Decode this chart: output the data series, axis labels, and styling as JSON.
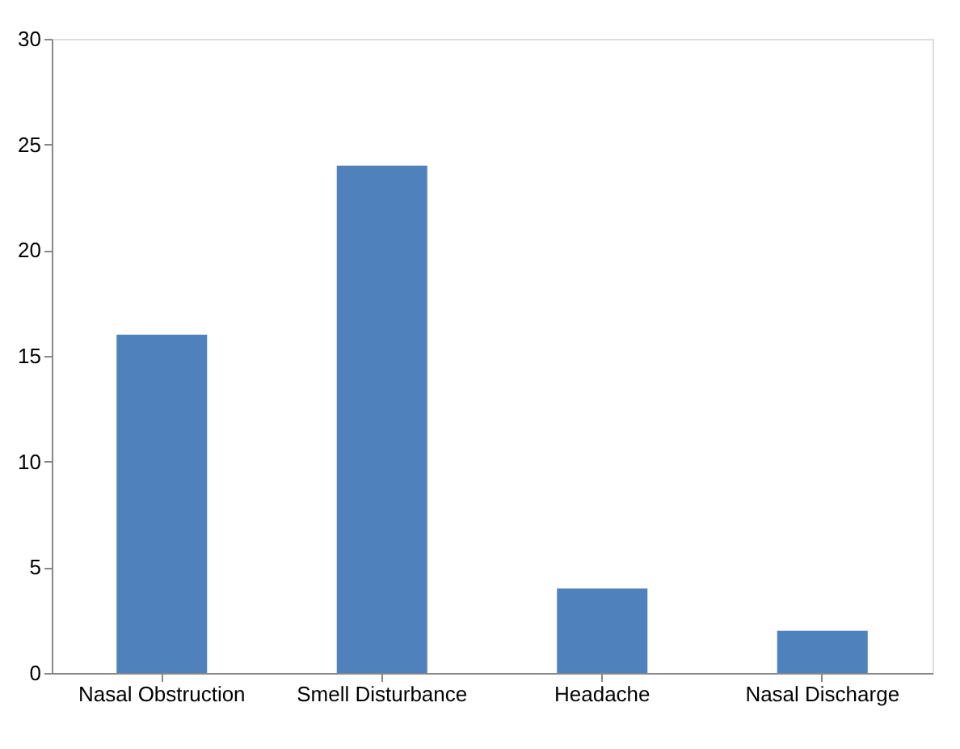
{
  "chart_data": {
    "type": "bar",
    "categories": [
      "Nasal Obstruction",
      "Smell Disturbance",
      "Headache",
      "Nasal Discharge"
    ],
    "values": [
      16,
      24,
      4,
      2
    ],
    "color": "#4f81bd",
    "ylim": [
      0,
      30
    ],
    "yticks": [
      0,
      5,
      10,
      15,
      20,
      25,
      30
    ],
    "grid": false
  }
}
